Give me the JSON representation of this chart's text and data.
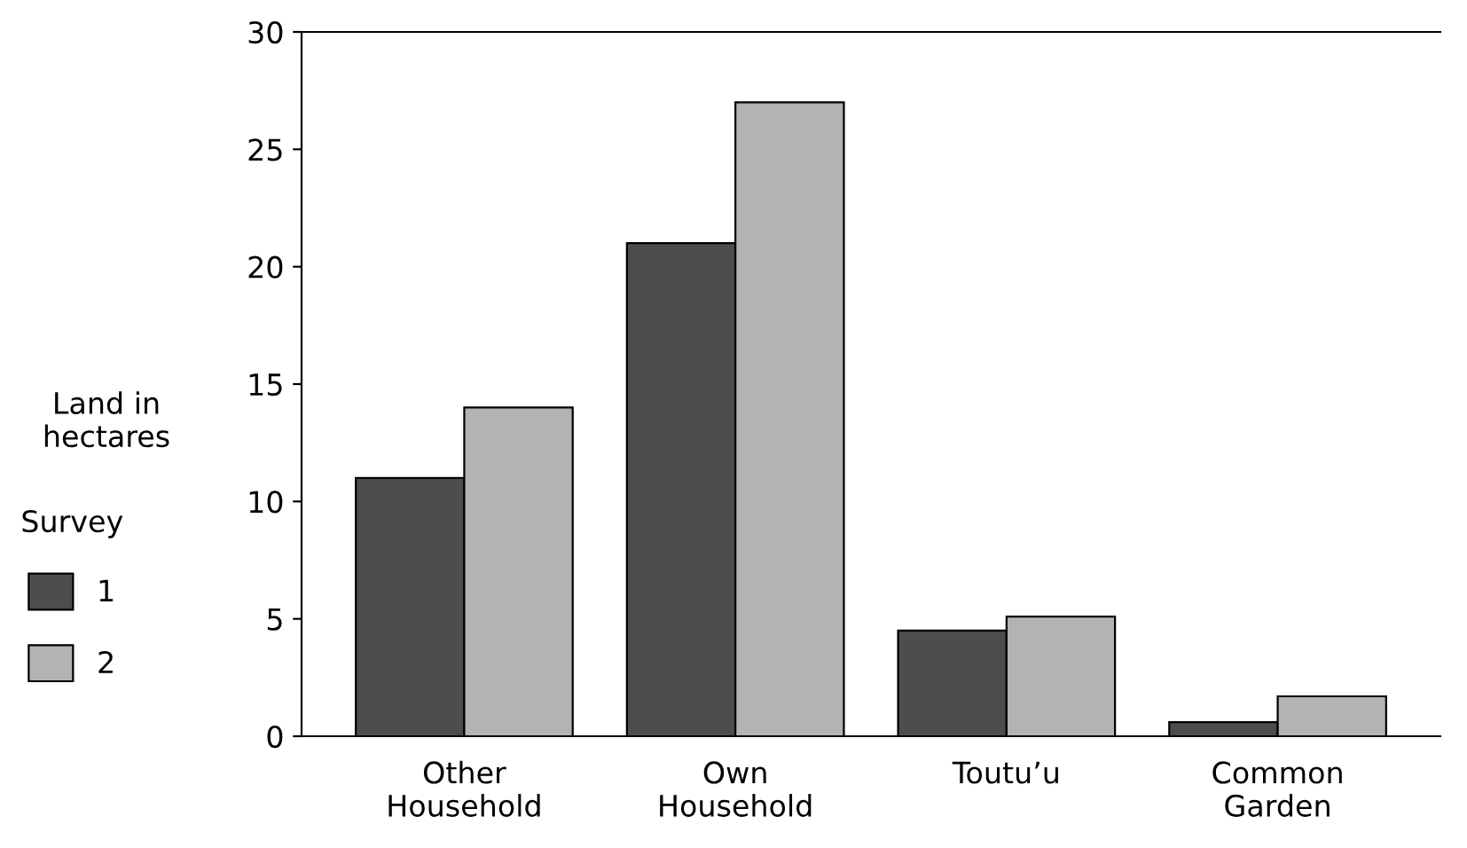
{
  "chart_data": {
    "type": "bar",
    "ylabel": "Land in\nhectares",
    "legend_title": "Survey",
    "legend": "left",
    "categories": [
      "Other\nHousehold",
      "Own\nHousehold",
      "Toutu’u",
      "Common\nGarden"
    ],
    "series": [
      {
        "name": "1",
        "color": "#4d4d4d",
        "values": [
          11,
          21,
          4.5,
          0.6
        ]
      },
      {
        "name": "2",
        "color": "#b3b3b3",
        "values": [
          14,
          27,
          5.1,
          1.7
        ]
      }
    ],
    "ylim": [
      0,
      30
    ],
    "yticks": [
      0,
      5,
      10,
      15,
      20,
      25,
      30
    ],
    "grid": false
  }
}
